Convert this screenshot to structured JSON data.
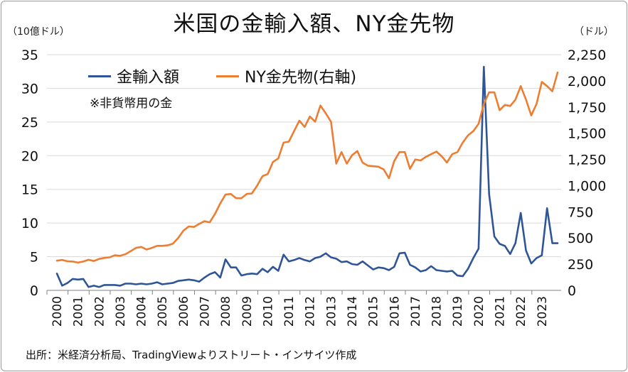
{
  "title": "米国の金輸入額、NY金先物",
  "left_unit": "（10億ドル）",
  "right_unit": "（ドル）",
  "note": "※非貨幣用の金",
  "source": "出所：米経済分析局、TradingViewよりストリート・インサイツ作成",
  "chart_data": {
    "type": "line",
    "title": "米国の金輸入額、NY金先物",
    "x_tick_labels": [
      "2000",
      "2001",
      "2002",
      "2003",
      "2004",
      "2005",
      "2006",
      "2007",
      "2008",
      "2009",
      "2010",
      "2011",
      "2012",
      "2013",
      "2014",
      "2015",
      "2016",
      "2017",
      "2018",
      "2019",
      "2020",
      "2021",
      "2022",
      "2023"
    ],
    "x_range": [
      2000,
      2023.85
    ],
    "left_axis": {
      "unit": "（10億ドル）",
      "ylim": [
        0,
        35
      ],
      "ticks": [
        "0",
        "5",
        "10",
        "15",
        "20",
        "25",
        "30",
        "35"
      ],
      "tick_values": [
        0,
        5,
        10,
        15,
        20,
        25,
        30,
        35
      ]
    },
    "right_axis": {
      "unit": "（ドル）",
      "ylim": [
        0,
        2250
      ],
      "ticks": [
        "0",
        "250",
        "500",
        "750",
        "1,000",
        "1,250",
        "1,500",
        "1,750",
        "2,000",
        "2,250"
      ],
      "tick_values": [
        0,
        250,
        500,
        750,
        1000,
        1250,
        1500,
        1750,
        2000,
        2250
      ]
    },
    "grid": "horizontal",
    "legend_position": "top-left",
    "series": [
      {
        "name": "金輸入額",
        "axis": "left",
        "color": "#2f5597",
        "points": [
          [
            2000.0,
            2.5
          ],
          [
            2000.25,
            0.7
          ],
          [
            2000.5,
            1.1
          ],
          [
            2000.75,
            1.7
          ],
          [
            2001.0,
            1.6
          ],
          [
            2001.25,
            1.7
          ],
          [
            2001.5,
            0.5
          ],
          [
            2001.75,
            0.7
          ],
          [
            2002.0,
            0.5
          ],
          [
            2002.25,
            0.8
          ],
          [
            2002.5,
            0.8
          ],
          [
            2002.75,
            0.8
          ],
          [
            2003.0,
            0.7
          ],
          [
            2003.25,
            1.0
          ],
          [
            2003.5,
            1.0
          ],
          [
            2003.75,
            0.9
          ],
          [
            2004.0,
            1.0
          ],
          [
            2004.25,
            0.9
          ],
          [
            2004.5,
            1.0
          ],
          [
            2004.75,
            1.2
          ],
          [
            2005.0,
            0.9
          ],
          [
            2005.25,
            1.0
          ],
          [
            2005.5,
            1.1
          ],
          [
            2005.75,
            1.4
          ],
          [
            2006.0,
            1.5
          ],
          [
            2006.25,
            1.6
          ],
          [
            2006.5,
            1.5
          ],
          [
            2006.75,
            1.3
          ],
          [
            2007.0,
            1.9
          ],
          [
            2007.25,
            2.4
          ],
          [
            2007.5,
            2.7
          ],
          [
            2007.75,
            1.9
          ],
          [
            2008.0,
            4.6
          ],
          [
            2008.25,
            3.4
          ],
          [
            2008.5,
            3.4
          ],
          [
            2008.75,
            2.2
          ],
          [
            2009.0,
            2.4
          ],
          [
            2009.25,
            2.5
          ],
          [
            2009.5,
            2.4
          ],
          [
            2009.75,
            3.2
          ],
          [
            2010.0,
            2.7
          ],
          [
            2010.25,
            3.5
          ],
          [
            2010.5,
            2.9
          ],
          [
            2010.75,
            5.3
          ],
          [
            2011.0,
            4.3
          ],
          [
            2011.25,
            4.5
          ],
          [
            2011.5,
            4.8
          ],
          [
            2011.75,
            4.5
          ],
          [
            2012.0,
            4.3
          ],
          [
            2012.25,
            4.8
          ],
          [
            2012.5,
            5.0
          ],
          [
            2012.75,
            5.5
          ],
          [
            2013.0,
            4.9
          ],
          [
            2013.25,
            4.7
          ],
          [
            2013.5,
            4.2
          ],
          [
            2013.75,
            4.3
          ],
          [
            2014.0,
            3.9
          ],
          [
            2014.25,
            3.8
          ],
          [
            2014.5,
            4.3
          ],
          [
            2014.75,
            3.7
          ],
          [
            2015.0,
            3.1
          ],
          [
            2015.25,
            3.4
          ],
          [
            2015.5,
            3.3
          ],
          [
            2015.75,
            3.0
          ],
          [
            2016.0,
            3.5
          ],
          [
            2016.25,
            5.5
          ],
          [
            2016.5,
            5.6
          ],
          [
            2016.75,
            3.8
          ],
          [
            2017.0,
            3.4
          ],
          [
            2017.25,
            2.8
          ],
          [
            2017.5,
            3.0
          ],
          [
            2017.75,
            3.6
          ],
          [
            2018.0,
            3.0
          ],
          [
            2018.25,
            2.9
          ],
          [
            2018.5,
            2.8
          ],
          [
            2018.75,
            2.9
          ],
          [
            2019.0,
            2.2
          ],
          [
            2019.25,
            2.1
          ],
          [
            2019.5,
            3.2
          ],
          [
            2019.75,
            4.8
          ],
          [
            2020.0,
            6.2
          ],
          [
            2020.25,
            33.2
          ],
          [
            2020.5,
            14.3
          ],
          [
            2020.75,
            8.0
          ],
          [
            2021.0,
            6.9
          ],
          [
            2021.25,
            6.6
          ],
          [
            2021.5,
            5.4
          ],
          [
            2021.75,
            7.0
          ],
          [
            2022.0,
            11.5
          ],
          [
            2022.25,
            5.9
          ],
          [
            2022.5,
            4.0
          ],
          [
            2022.75,
            4.8
          ],
          [
            2023.0,
            5.2
          ],
          [
            2023.25,
            12.2
          ],
          [
            2023.5,
            7.0
          ],
          [
            2023.75,
            7.0
          ]
        ]
      },
      {
        "name": "NY金先物(右軸)",
        "axis": "right",
        "color": "#ed7d31",
        "points": [
          [
            2000.0,
            283
          ],
          [
            2000.25,
            290
          ],
          [
            2000.5,
            278
          ],
          [
            2000.75,
            275
          ],
          [
            2001.0,
            265
          ],
          [
            2001.25,
            275
          ],
          [
            2001.5,
            292
          ],
          [
            2001.75,
            280
          ],
          [
            2002.0,
            300
          ],
          [
            2002.25,
            310
          ],
          [
            2002.5,
            315
          ],
          [
            2002.75,
            335
          ],
          [
            2003.0,
            330
          ],
          [
            2003.25,
            345
          ],
          [
            2003.5,
            375
          ],
          [
            2003.75,
            405
          ],
          [
            2004.0,
            415
          ],
          [
            2004.25,
            390
          ],
          [
            2004.5,
            405
          ],
          [
            2004.75,
            425
          ],
          [
            2005.0,
            425
          ],
          [
            2005.25,
            430
          ],
          [
            2005.5,
            445
          ],
          [
            2005.75,
            500
          ],
          [
            2006.0,
            570
          ],
          [
            2006.25,
            610
          ],
          [
            2006.5,
            605
          ],
          [
            2006.75,
            635
          ],
          [
            2007.0,
            660
          ],
          [
            2007.25,
            650
          ],
          [
            2007.5,
            730
          ],
          [
            2007.75,
            830
          ],
          [
            2008.0,
            915
          ],
          [
            2008.25,
            920
          ],
          [
            2008.5,
            880
          ],
          [
            2008.75,
            880
          ],
          [
            2009.0,
            920
          ],
          [
            2009.25,
            925
          ],
          [
            2009.5,
            1000
          ],
          [
            2009.75,
            1090
          ],
          [
            2010.0,
            1110
          ],
          [
            2010.25,
            1225
          ],
          [
            2010.5,
            1260
          ],
          [
            2010.75,
            1410
          ],
          [
            2011.0,
            1420
          ],
          [
            2011.25,
            1520
          ],
          [
            2011.5,
            1620
          ],
          [
            2011.75,
            1560
          ],
          [
            2012.0,
            1660
          ],
          [
            2012.25,
            1610
          ],
          [
            2012.5,
            1765
          ],
          [
            2012.75,
            1690
          ],
          [
            2013.0,
            1610
          ],
          [
            2013.25,
            1210
          ],
          [
            2013.5,
            1320
          ],
          [
            2013.75,
            1210
          ],
          [
            2014.0,
            1290
          ],
          [
            2014.25,
            1330
          ],
          [
            2014.5,
            1220
          ],
          [
            2014.75,
            1190
          ],
          [
            2015.0,
            1185
          ],
          [
            2015.25,
            1180
          ],
          [
            2015.5,
            1155
          ],
          [
            2015.75,
            1070
          ],
          [
            2016.0,
            1235
          ],
          [
            2016.25,
            1320
          ],
          [
            2016.5,
            1320
          ],
          [
            2016.75,
            1160
          ],
          [
            2017.0,
            1250
          ],
          [
            2017.25,
            1240
          ],
          [
            2017.5,
            1275
          ],
          [
            2017.75,
            1300
          ],
          [
            2018.0,
            1325
          ],
          [
            2018.25,
            1280
          ],
          [
            2018.5,
            1220
          ],
          [
            2018.75,
            1300
          ],
          [
            2019.0,
            1320
          ],
          [
            2019.25,
            1410
          ],
          [
            2019.5,
            1480
          ],
          [
            2019.75,
            1520
          ],
          [
            2020.0,
            1590
          ],
          [
            2020.25,
            1780
          ],
          [
            2020.5,
            1890
          ],
          [
            2020.75,
            1890
          ],
          [
            2021.0,
            1720
          ],
          [
            2021.25,
            1770
          ],
          [
            2021.5,
            1760
          ],
          [
            2021.75,
            1820
          ],
          [
            2022.0,
            1950
          ],
          [
            2022.25,
            1820
          ],
          [
            2022.5,
            1670
          ],
          [
            2022.75,
            1780
          ],
          [
            2023.0,
            1990
          ],
          [
            2023.25,
            1950
          ],
          [
            2023.5,
            1900
          ],
          [
            2023.75,
            2080
          ]
        ]
      }
    ]
  }
}
